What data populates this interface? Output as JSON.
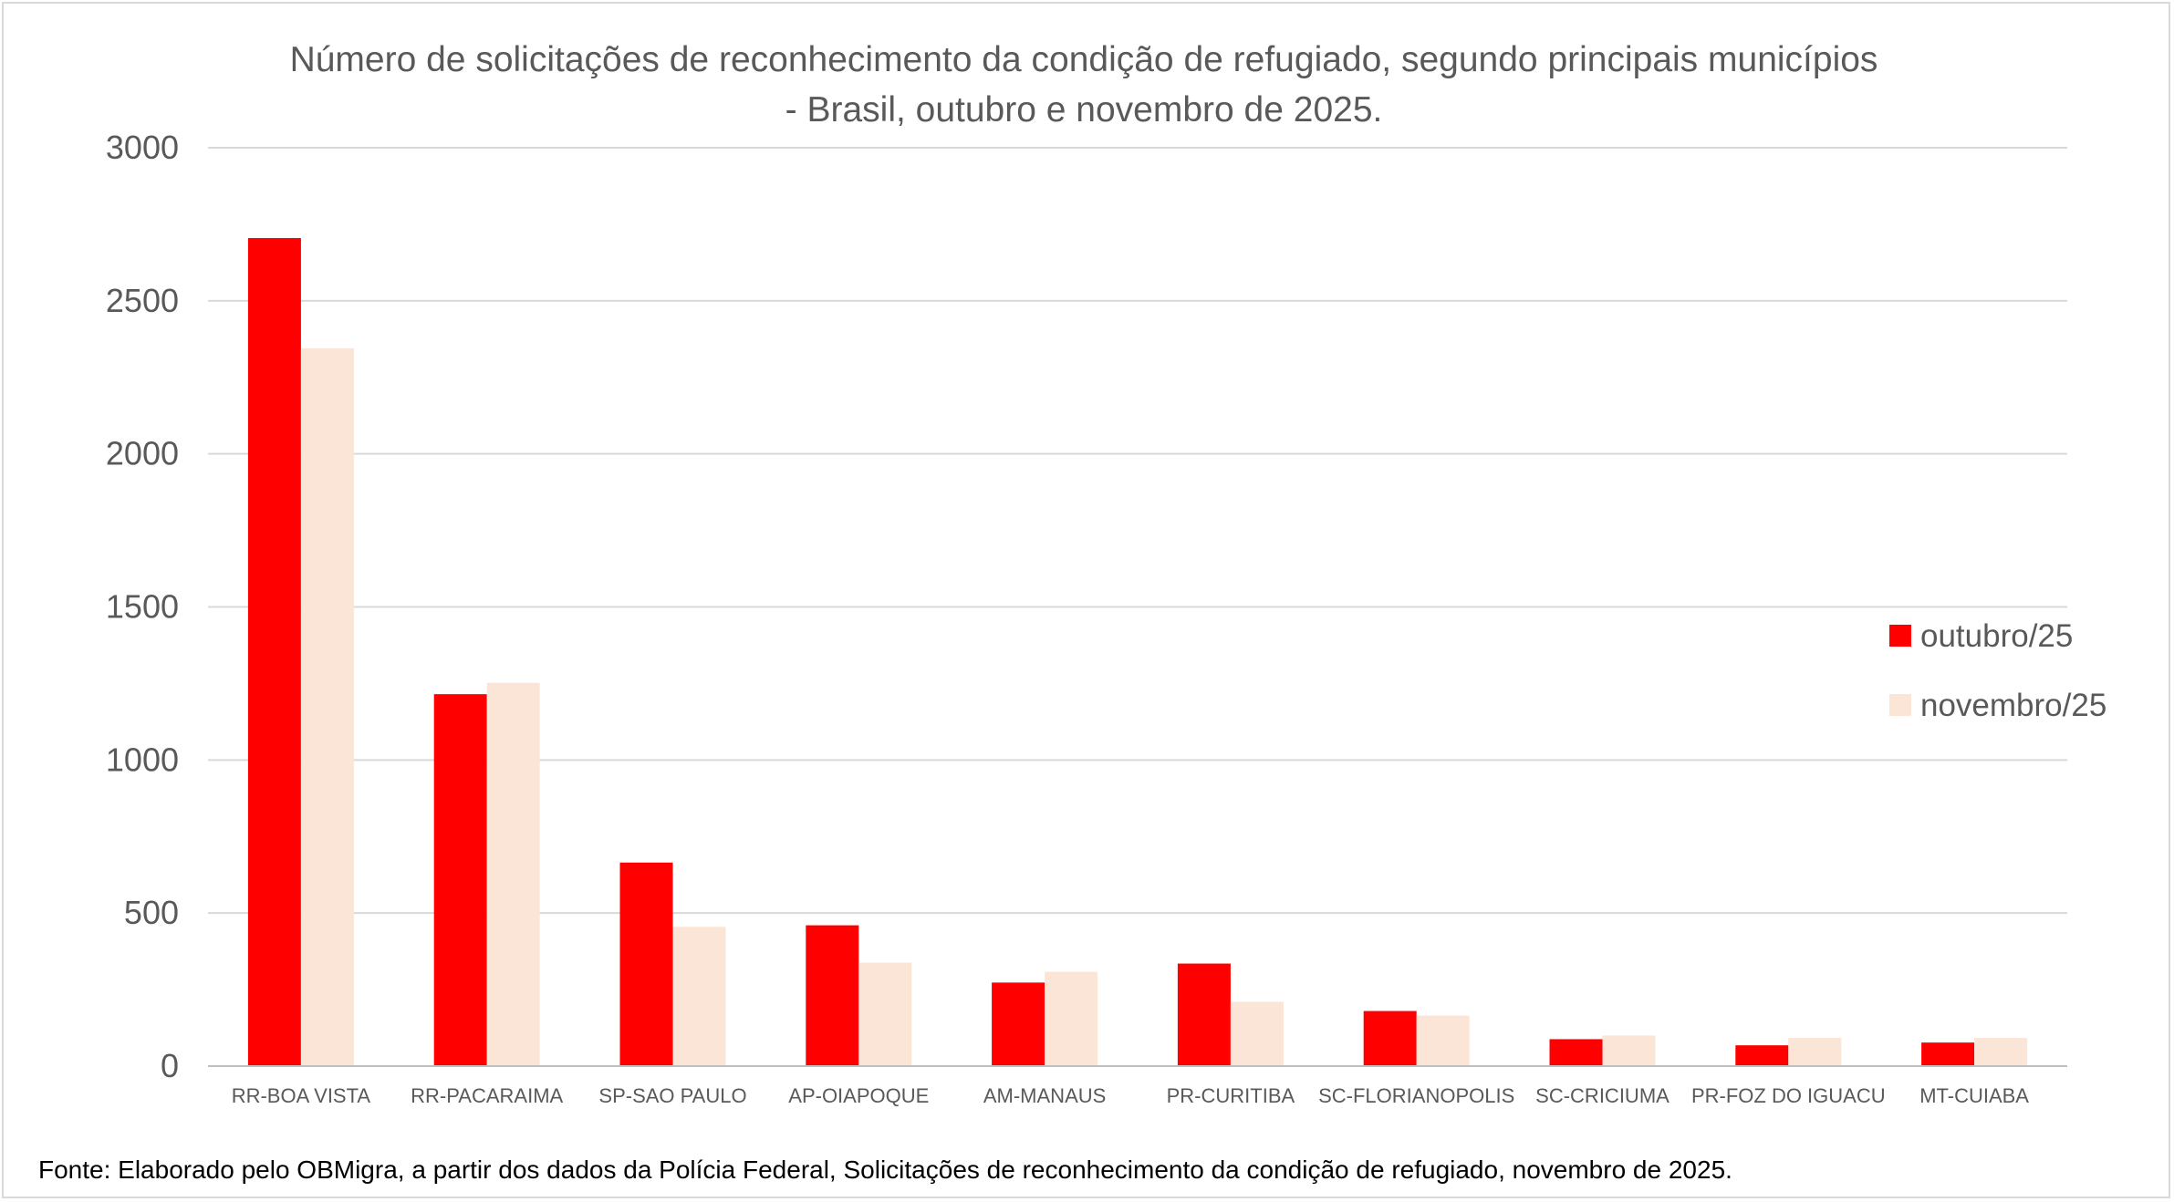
{
  "chart_data": {
    "type": "bar",
    "title_lines": [
      "Número de solicitações de reconhecimento da condição de refugiado, segundo principais municípios",
      "- Brasil, outubro e novembro de 2025."
    ],
    "categories": [
      "RR-BOA VISTA",
      "RR-PACARAIMA",
      "SP-SAO PAULO",
      "AP-OIAPOQUE",
      "AM-MANAUS",
      "PR-CURITIBA",
      "SC-FLORIANOPOLIS",
      "SC-CRICIUMA",
      "PR-FOZ DO IGUACU",
      "MT-CUIABA"
    ],
    "series": [
      {
        "name": "outubro/25",
        "color": "#ff0000",
        "values": [
          2705,
          1215,
          665,
          460,
          273,
          335,
          180,
          88,
          68,
          77
        ]
      },
      {
        "name": "novembro/25",
        "color": "#fbe5d6",
        "values": [
          2345,
          1252,
          455,
          338,
          308,
          210,
          165,
          100,
          92,
          92
        ]
      }
    ],
    "xlabel": "",
    "ylabel": "",
    "ylim": [
      0,
      3000
    ],
    "yticks": [
      0,
      500,
      1000,
      1500,
      2000,
      2500,
      3000
    ],
    "grid": true,
    "legend": "right",
    "source_note": "Fonte: Elaborado pelo OBMigra,  a partir dos dados da Polícia Federal, Solicitações de reconhecimento da condição de refugiado, novembro  de 2025."
  }
}
